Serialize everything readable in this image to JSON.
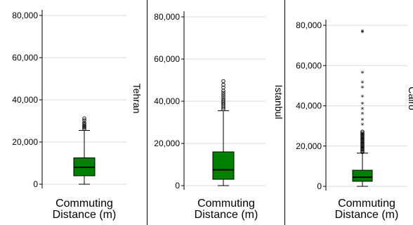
{
  "chart_data": [
    {
      "type": "box",
      "city": "Tehran",
      "xlabel_line1": "Commuting",
      "xlabel_line2": "Distance (m)",
      "ylim": [
        0,
        80000
      ],
      "yticks": [
        "0",
        "20,000",
        "40,000",
        "60,000",
        "80,000"
      ],
      "ytick_values": [
        0,
        20000,
        40000,
        60000,
        80000
      ],
      "box": {
        "min": 0,
        "q1": 4000,
        "median": 8000,
        "q3": 12500,
        "whisker_high": 25500
      },
      "outliers_circle": [
        26200,
        26800,
        27300,
        27900,
        28500,
        29200,
        30300,
        31200
      ],
      "outliers_star": [],
      "color": "#008000"
    },
    {
      "type": "box",
      "city": "Istanbul",
      "xlabel_line1": "Commuting",
      "xlabel_line2": "Distance (m)",
      "ylim": [
        0,
        80000
      ],
      "yticks": [
        "0",
        "20,000",
        "40,000",
        "60,000",
        "80,000"
      ],
      "ytick_values": [
        0,
        20000,
        40000,
        60000,
        80000
      ],
      "box": {
        "min": 0,
        "q1": 3000,
        "median": 7500,
        "q3": 16000,
        "whisker_high": 35500
      },
      "outliers_circle": [
        36200,
        37000,
        37800,
        38600,
        39400,
        40200,
        41000,
        42000,
        43000,
        44000,
        45000,
        46500,
        47800,
        49500
      ],
      "outliers_star": [],
      "color": "#008000"
    },
    {
      "type": "box",
      "city": "Cairo",
      "xlabel_line1": "Commuting",
      "xlabel_line2": "Distance (m)",
      "ylim": [
        0,
        80000
      ],
      "yticks": [
        "0",
        "20,000",
        "40,000",
        "60,000",
        "80,000"
      ],
      "ytick_values": [
        0,
        20000,
        40000,
        60000,
        80000
      ],
      "box": {
        "min": 0,
        "q1": 2500,
        "median": 4500,
        "q3": 8000,
        "whisker_high": 16500
      },
      "outliers_circle": [
        17000,
        17600,
        18200,
        18800,
        19400,
        20000,
        20600,
        21200,
        21800,
        22400,
        23000,
        23600,
        24200,
        24800,
        25400,
        26000,
        26600,
        27200
      ],
      "outliers_star": [
        30500,
        33000,
        36000,
        38500,
        41000,
        44500,
        49000,
        51500,
        56500,
        76500,
        77000
      ],
      "color": "#008000"
    }
  ]
}
